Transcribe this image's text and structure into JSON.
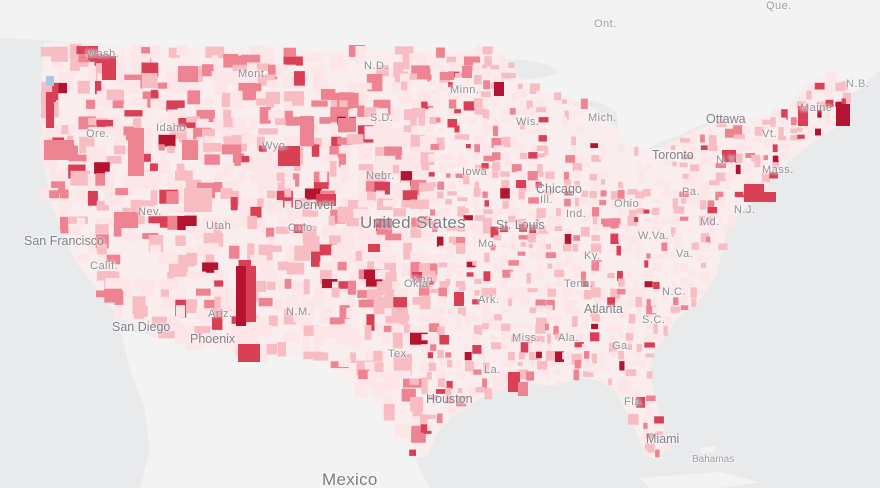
{
  "map": {
    "labels": {
      "countries": [
        "United States",
        "Mexico"
      ],
      "states": [
        "Wash.",
        "Mont.",
        "N.D.",
        "Minn.",
        "Ore.",
        "Idaho",
        "S.D.",
        "Wis.",
        "Mich.",
        "Maine",
        "Wyo.",
        "Iowa",
        "Nebr.",
        "Ill.",
        "Ind.",
        "Ohio",
        "Pa.",
        "N.Y.",
        "Vt.",
        "Mass.",
        "N.J.",
        "Md.",
        "Nev.",
        "Utah",
        "Colo.",
        "Calif.",
        "Mo.",
        "Kan.",
        "Ky.",
        "W.Va.",
        "Va.",
        "Tenn.",
        "N.C.",
        "Okla.",
        "Ark.",
        "S.C.",
        "Ariz.",
        "N.M.",
        "Ga.",
        "Miss.",
        "Ala.",
        "Tex.",
        "La.",
        "Fla."
      ],
      "provinces": [
        "Ont.",
        "Que.",
        "N.B."
      ],
      "cities": [
        "San Francisco",
        "Denver",
        "St. Louis",
        "Chicago",
        "Toronto",
        "Ottawa",
        "San Diego",
        "Phoenix",
        "Atlanta",
        "Houston",
        "Miami",
        "Bahamas"
      ]
    },
    "colors": {
      "land": "#f6f6f7",
      "water": "#e9eaec",
      "low": "#fde6e8",
      "light": "#f8bcc3",
      "medium": "#ee8391",
      "high": "#d93f55",
      "very_high": "#b4142f",
      "negative": "#a9c8e8"
    }
  }
}
